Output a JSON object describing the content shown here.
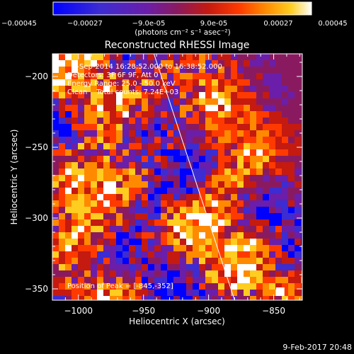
{
  "colorbar": {
    "ticks": [
      "-0.00045",
      "-0.00027",
      "-9.0e-05",
      "9.0e-05",
      "0.00027",
      "0.00045"
    ],
    "unit_label": "(photons cm⁻² s⁻¹ asec⁻²)",
    "min": -0.00045,
    "max": 0.00045
  },
  "plot": {
    "title": "Reconstructed RHESSI Image",
    "info_lines": [
      "5-Sep-2014 16:28:52.000 to 16:38:52.000",
      "Detectors: 3F 6F 9F, Att 0",
      "Energy Range: 25.0 - 50.0 keV",
      "Clean    Total counts: 7.24E+03"
    ],
    "peak_label": "Position of Peak = [-845,-352]",
    "timestamp": "9-Feb-2017 20:48"
  },
  "chart_data": {
    "type": "heatmap",
    "title": "Reconstructed RHESSI Image",
    "xlabel": "Heliocentric X (arcsec)",
    "ylabel": "Heliocentric Y (arcsec)",
    "xlim": [
      -1020,
      -828
    ],
    "ylim": [
      -358,
      -184
    ],
    "x_ticks": [
      -1000,
      -950,
      -900,
      -850
    ],
    "y_ticks": [
      -200,
      -250,
      -300,
      -350
    ],
    "x_tick_labels": [
      "−1000",
      "−950",
      "−900",
      "−850"
    ],
    "y_tick_labels": [
      "−200",
      "−250",
      "−300",
      "−350"
    ],
    "peak": [
      -845,
      -352
    ],
    "limb_line": {
      "x": [
        -942,
        -880
      ],
      "y": [
        -184,
        -358
      ]
    },
    "colorscale": [
      "#0000ff",
      "#3c2cd2",
      "#6a1eaa",
      "#8a1a60",
      "#c41a10",
      "#ff3a00",
      "#ff8a00",
      "#ffcc20",
      "#ffffff"
    ]
  }
}
